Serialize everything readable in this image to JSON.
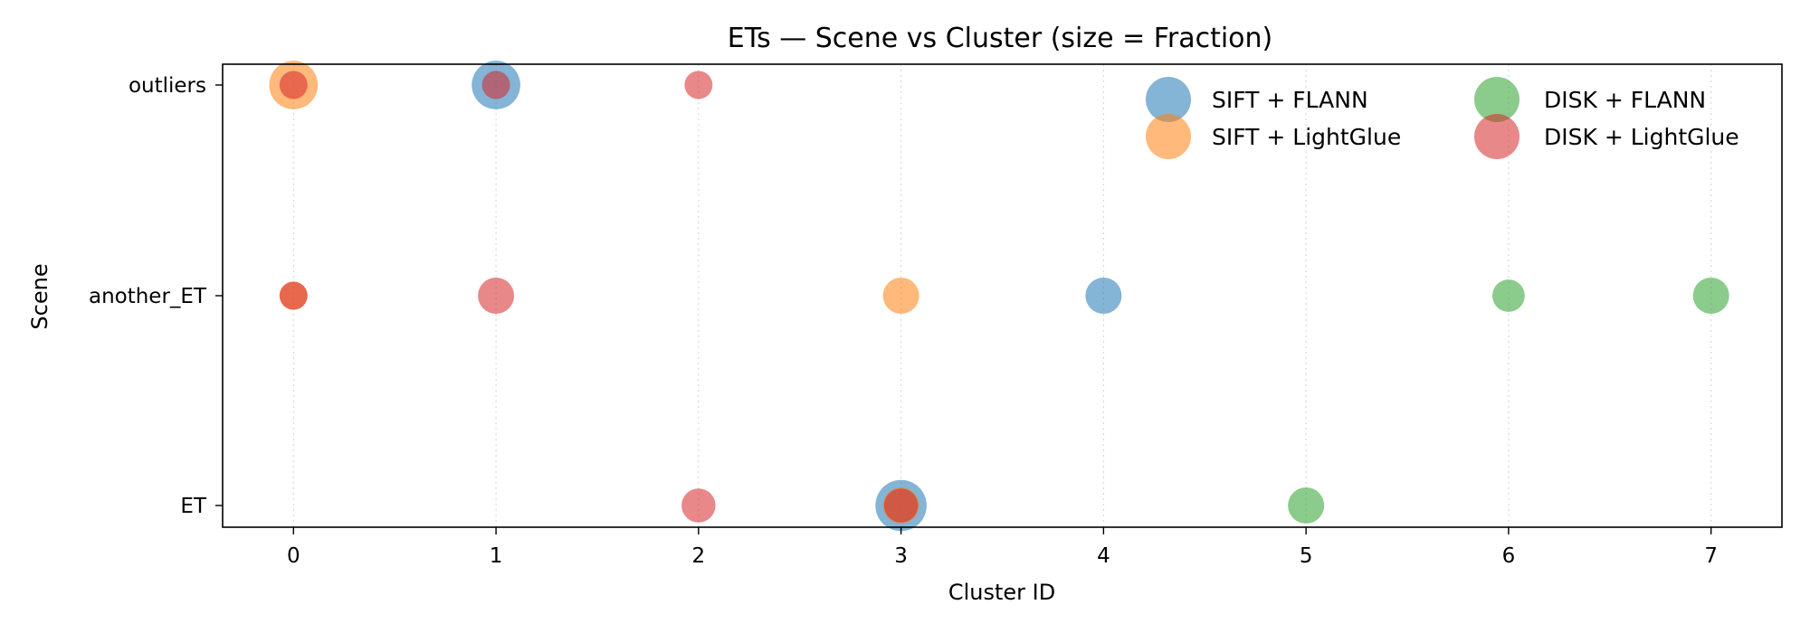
{
  "chart_data": {
    "type": "scatter",
    "title": "ETs — Scene vs Cluster (size = Fraction)",
    "xlabel": "Cluster ID",
    "ylabel": "Scene",
    "x_ticks": [
      0,
      1,
      2,
      3,
      4,
      5,
      6,
      7
    ],
    "y_categories": [
      "ET",
      "another_ET",
      "outliers"
    ],
    "xlim": [
      -0.35,
      7.35
    ],
    "grid": "vertical dotted",
    "legend_position": "top-right",
    "series": [
      {
        "name": "SIFT + FLANN",
        "color": "#1f77b4",
        "points": [
          {
            "x": 1,
            "y": "outliers",
            "fraction": 0.45
          },
          {
            "x": 4,
            "y": "another_ET",
            "fraction": 0.25
          },
          {
            "x": 3,
            "y": "ET",
            "fraction": 0.5
          }
        ]
      },
      {
        "name": "SIFT + LightGlue",
        "color": "#ff7f0e",
        "points": [
          {
            "x": 0,
            "y": "outliers",
            "fraction": 0.45
          },
          {
            "x": 0,
            "y": "another_ET",
            "fraction": 0.15
          },
          {
            "x": 3,
            "y": "another_ET",
            "fraction": 0.25
          },
          {
            "x": 3,
            "y": "ET",
            "fraction": 0.25
          }
        ]
      },
      {
        "name": "DISK + FLANN",
        "color": "#2ca02c",
        "points": [
          {
            "x": 6,
            "y": "another_ET",
            "fraction": 0.2
          },
          {
            "x": 7,
            "y": "another_ET",
            "fraction": 0.25
          },
          {
            "x": 5,
            "y": "ET",
            "fraction": 0.25
          }
        ]
      },
      {
        "name": "DISK + LightGlue",
        "color": "#d62728",
        "points": [
          {
            "x": 0,
            "y": "outliers",
            "fraction": 0.15
          },
          {
            "x": 1,
            "y": "outliers",
            "fraction": 0.15
          },
          {
            "x": 2,
            "y": "outliers",
            "fraction": 0.15
          },
          {
            "x": 0,
            "y": "another_ET",
            "fraction": 0.15
          },
          {
            "x": 1,
            "y": "another_ET",
            "fraction": 0.25
          },
          {
            "x": 2,
            "y": "ET",
            "fraction": 0.22
          },
          {
            "x": 3,
            "y": "ET",
            "fraction": 0.22
          }
        ]
      }
    ]
  }
}
